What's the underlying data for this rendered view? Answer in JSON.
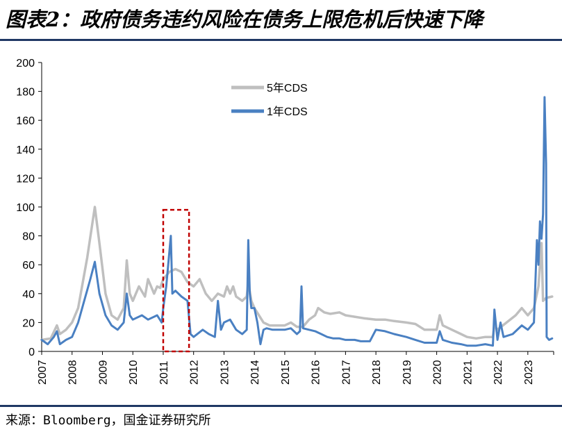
{
  "title": "图表2：政府债务违约风险在债务上限危机后快速下降",
  "source": "来源：Bloomberg，国金证券研究所",
  "colors": {
    "cds_5y": "#bfbfbf",
    "cds_1y": "#4a80c2",
    "highlight_box": "#c00000",
    "rule": "#1f3864"
  },
  "chart_data": {
    "type": "line",
    "title": "",
    "xlabel": "",
    "ylabel": "",
    "ylim": [
      0,
      200
    ],
    "y_ticks": [
      0,
      20,
      40,
      60,
      80,
      100,
      120,
      140,
      160,
      180,
      200
    ],
    "x_ticks": [
      "2007",
      "2008",
      "2009",
      "2010",
      "2011",
      "2012",
      "2013",
      "2014",
      "2015",
      "2016",
      "2017",
      "2018",
      "2019",
      "2020",
      "2021",
      "2022",
      "2023"
    ],
    "xlim": [
      2007.0,
      2023.85
    ],
    "grid": false,
    "legend_position": "top-center",
    "highlight": {
      "x_range": [
        2011.0,
        2011.85
      ],
      "y_range": [
        0,
        98
      ],
      "style": "dashed"
    },
    "series": [
      {
        "name": "5年CDS",
        "points": [
          [
            2007.0,
            8
          ],
          [
            2007.3,
            9
          ],
          [
            2007.5,
            18
          ],
          [
            2007.6,
            12
          ],
          [
            2007.8,
            15
          ],
          [
            2008.0,
            20
          ],
          [
            2008.2,
            30
          ],
          [
            2008.5,
            65
          ],
          [
            2008.75,
            100
          ],
          [
            2008.9,
            75
          ],
          [
            2009.1,
            40
          ],
          [
            2009.3,
            25
          ],
          [
            2009.5,
            22
          ],
          [
            2009.7,
            30
          ],
          [
            2009.8,
            63
          ],
          [
            2009.9,
            40
          ],
          [
            2010.0,
            35
          ],
          [
            2010.2,
            45
          ],
          [
            2010.4,
            38
          ],
          [
            2010.5,
            50
          ],
          [
            2010.7,
            40
          ],
          [
            2010.8,
            45
          ],
          [
            2010.9,
            44
          ],
          [
            2011.0,
            50
          ],
          [
            2011.2,
            55
          ],
          [
            2011.4,
            57
          ],
          [
            2011.6,
            55
          ],
          [
            2011.8,
            48
          ],
          [
            2012.0,
            45
          ],
          [
            2012.2,
            50
          ],
          [
            2012.4,
            40
          ],
          [
            2012.6,
            35
          ],
          [
            2012.8,
            40
          ],
          [
            2013.0,
            38
          ],
          [
            2013.1,
            45
          ],
          [
            2013.2,
            40
          ],
          [
            2013.3,
            45
          ],
          [
            2013.4,
            38
          ],
          [
            2013.6,
            35
          ],
          [
            2013.75,
            38
          ],
          [
            2013.8,
            48
          ],
          [
            2013.9,
            35
          ],
          [
            2014.0,
            30
          ],
          [
            2014.3,
            20
          ],
          [
            2014.5,
            18
          ],
          [
            2014.8,
            18
          ],
          [
            2015.0,
            18
          ],
          [
            2015.2,
            20
          ],
          [
            2015.4,
            17
          ],
          [
            2015.6,
            17
          ],
          [
            2015.8,
            22
          ],
          [
            2016.0,
            25
          ],
          [
            2016.1,
            30
          ],
          [
            2016.3,
            27
          ],
          [
            2016.5,
            26
          ],
          [
            2016.8,
            27
          ],
          [
            2017.0,
            25
          ],
          [
            2017.3,
            24
          ],
          [
            2017.6,
            23
          ],
          [
            2018.0,
            22
          ],
          [
            2018.3,
            22
          ],
          [
            2018.6,
            21
          ],
          [
            2019.0,
            20
          ],
          [
            2019.3,
            19
          ],
          [
            2019.6,
            15
          ],
          [
            2020.0,
            15
          ],
          [
            2020.1,
            25
          ],
          [
            2020.2,
            18
          ],
          [
            2020.5,
            15
          ],
          [
            2020.8,
            12
          ],
          [
            2021.0,
            10
          ],
          [
            2021.3,
            9
          ],
          [
            2021.6,
            10
          ],
          [
            2021.85,
            10
          ],
          [
            2021.9,
            18
          ],
          [
            2022.0,
            15
          ],
          [
            2022.3,
            20
          ],
          [
            2022.6,
            25
          ],
          [
            2022.8,
            30
          ],
          [
            2023.0,
            25
          ],
          [
            2023.2,
            30
          ],
          [
            2023.35,
            45
          ],
          [
            2023.45,
            75
          ],
          [
            2023.5,
            35
          ],
          [
            2023.6,
            37
          ],
          [
            2023.8,
            38
          ]
        ]
      },
      {
        "name": "1年CDS",
        "points": [
          [
            2007.0,
            8
          ],
          [
            2007.2,
            5
          ],
          [
            2007.4,
            10
          ],
          [
            2007.5,
            14
          ],
          [
            2007.6,
            5
          ],
          [
            2007.8,
            8
          ],
          [
            2008.0,
            10
          ],
          [
            2008.2,
            20
          ],
          [
            2008.4,
            35
          ],
          [
            2008.6,
            50
          ],
          [
            2008.75,
            62
          ],
          [
            2008.9,
            40
          ],
          [
            2009.1,
            25
          ],
          [
            2009.3,
            18
          ],
          [
            2009.5,
            15
          ],
          [
            2009.7,
            20
          ],
          [
            2009.8,
            40
          ],
          [
            2009.9,
            25
          ],
          [
            2010.0,
            22
          ],
          [
            2010.3,
            25
          ],
          [
            2010.5,
            22
          ],
          [
            2010.8,
            25
          ],
          [
            2010.95,
            20
          ],
          [
            2011.0,
            30
          ],
          [
            2011.1,
            45
          ],
          [
            2011.25,
            80
          ],
          [
            2011.3,
            40
          ],
          [
            2011.4,
            42
          ],
          [
            2011.6,
            38
          ],
          [
            2011.8,
            35
          ],
          [
            2011.9,
            12
          ],
          [
            2012.0,
            10
          ],
          [
            2012.3,
            15
          ],
          [
            2012.5,
            12
          ],
          [
            2012.7,
            10
          ],
          [
            2012.8,
            35
          ],
          [
            2012.9,
            15
          ],
          [
            2013.0,
            20
          ],
          [
            2013.2,
            22
          ],
          [
            2013.4,
            15
          ],
          [
            2013.6,
            12
          ],
          [
            2013.75,
            15
          ],
          [
            2013.8,
            77
          ],
          [
            2013.85,
            40
          ],
          [
            2013.9,
            30
          ],
          [
            2014.0,
            30
          ],
          [
            2014.1,
            20
          ],
          [
            2014.2,
            5
          ],
          [
            2014.3,
            15
          ],
          [
            2014.4,
            16
          ],
          [
            2014.6,
            15
          ],
          [
            2014.8,
            15
          ],
          [
            2015.0,
            15
          ],
          [
            2015.2,
            16
          ],
          [
            2015.4,
            12
          ],
          [
            2015.5,
            14
          ],
          [
            2015.55,
            45
          ],
          [
            2015.6,
            16
          ],
          [
            2015.8,
            15
          ],
          [
            2016.0,
            14
          ],
          [
            2016.2,
            12
          ],
          [
            2016.4,
            10
          ],
          [
            2016.6,
            9
          ],
          [
            2016.8,
            9
          ],
          [
            2017.0,
            8
          ],
          [
            2017.3,
            8
          ],
          [
            2017.5,
            7
          ],
          [
            2017.8,
            7
          ],
          [
            2018.0,
            15
          ],
          [
            2018.3,
            14
          ],
          [
            2018.6,
            12
          ],
          [
            2019.0,
            10
          ],
          [
            2019.3,
            8
          ],
          [
            2019.6,
            6
          ],
          [
            2020.0,
            6
          ],
          [
            2020.1,
            14
          ],
          [
            2020.2,
            8
          ],
          [
            2020.5,
            6
          ],
          [
            2020.8,
            5
          ],
          [
            2021.0,
            4
          ],
          [
            2021.3,
            4
          ],
          [
            2021.6,
            5
          ],
          [
            2021.85,
            4
          ],
          [
            2021.9,
            29
          ],
          [
            2022.0,
            8
          ],
          [
            2022.1,
            20
          ],
          [
            2022.2,
            10
          ],
          [
            2022.5,
            12
          ],
          [
            2022.8,
            18
          ],
          [
            2023.0,
            15
          ],
          [
            2023.2,
            20
          ],
          [
            2023.3,
            77
          ],
          [
            2023.35,
            60
          ],
          [
            2023.4,
            90
          ],
          [
            2023.45,
            78
          ],
          [
            2023.5,
            95
          ],
          [
            2023.55,
            176
          ],
          [
            2023.6,
            130
          ],
          [
            2023.62,
            10
          ],
          [
            2023.7,
            8
          ],
          [
            2023.8,
            9
          ]
        ]
      }
    ]
  }
}
